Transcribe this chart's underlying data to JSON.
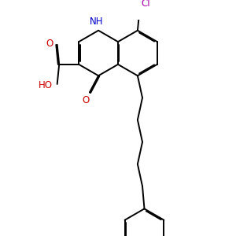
{
  "background": "#ffffff",
  "bond_color": "#000000",
  "bond_width": 1.4,
  "dbo": 0.055,
  "figsize": [
    3.0,
    3.0
  ],
  "dpi": 100,
  "N_color": "#0000cc",
  "O_color": "#cc0000",
  "Cl_color": "#aa00aa",
  "font_size": 8.5,
  "xlim": [
    0,
    10
  ],
  "ylim": [
    -9,
    2
  ],
  "bl": 1.0
}
